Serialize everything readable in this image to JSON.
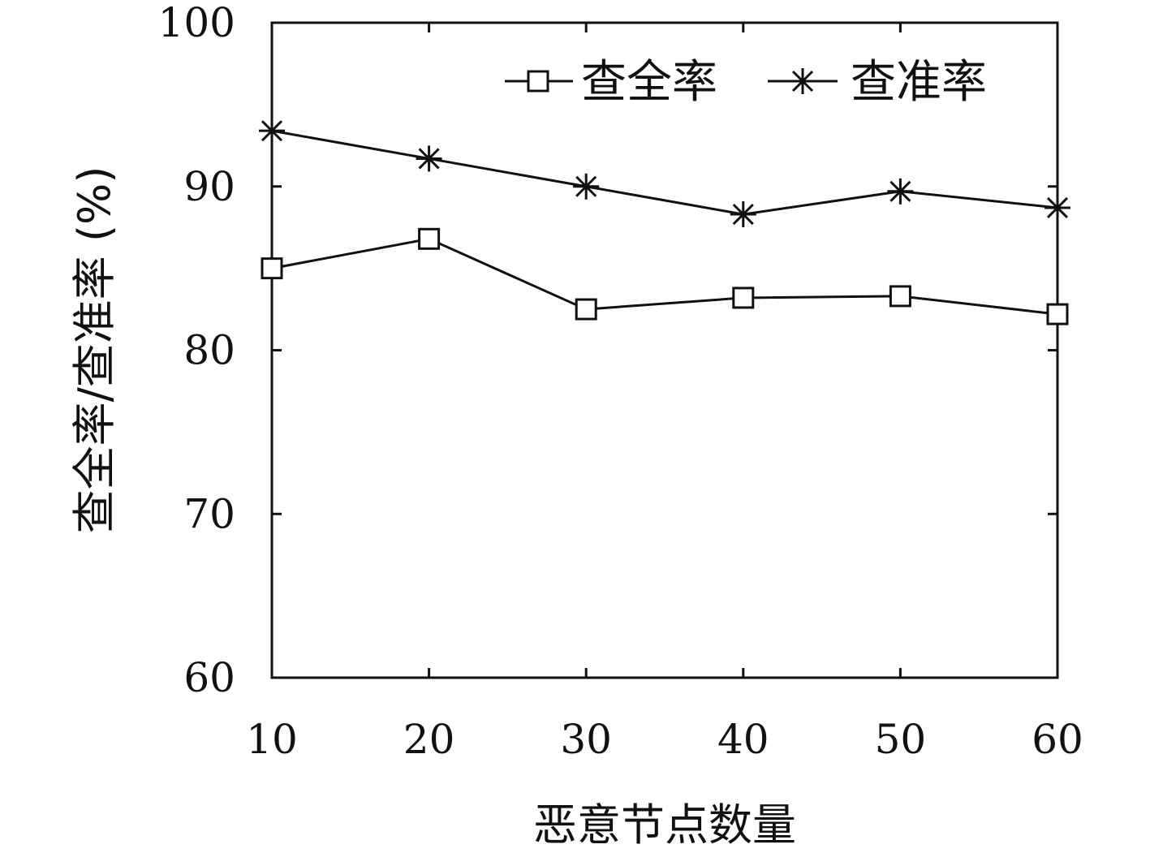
{
  "chart_data": {
    "type": "line",
    "x": [
      10,
      20,
      30,
      40,
      50,
      60
    ],
    "xlabel": "恶意节点数量",
    "ylabel": "查全率/查准率 (%)",
    "xlim": [
      10,
      60
    ],
    "ylim": [
      60,
      100
    ],
    "x_ticks": [
      "10",
      "20",
      "30",
      "40",
      "50",
      "60"
    ],
    "y_ticks": [
      "60",
      "70",
      "80",
      "90",
      "100"
    ],
    "grid": false,
    "legend_position": "top-right",
    "series": [
      {
        "name": "查全率",
        "marker": "square",
        "values": [
          85.0,
          86.8,
          82.5,
          83.2,
          83.3,
          82.2
        ]
      },
      {
        "name": "查准率",
        "marker": "asterisk",
        "values": [
          93.4,
          91.7,
          90.0,
          88.3,
          89.7,
          88.7
        ]
      }
    ]
  }
}
